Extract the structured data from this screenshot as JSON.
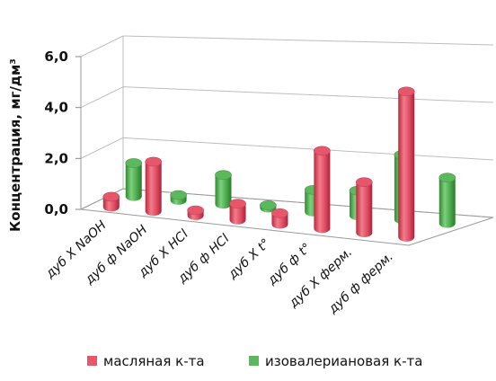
{
  "chart_data": {
    "type": "bar",
    "subtype": "3d-cylinder",
    "title": "",
    "ylabel": "Концентрация, мг/дм³",
    "xlabel": "",
    "ylim": [
      0,
      6
    ],
    "yticks": [
      "0,0",
      "2,0",
      "4,0",
      "6,0"
    ],
    "grid": true,
    "legend_position": "bottom",
    "categories": [
      "дуб Х NaOH",
      "дуб ф NaOH",
      "дуб Х HCl",
      "дуб ф HCl",
      "дуб Х t°",
      "дуб ф t°",
      "дуб Х ферм.",
      "дуб ф ферм."
    ],
    "series": [
      {
        "name": "масляная к-та",
        "color": "#e8566b",
        "values": [
          0.4,
          1.9,
          0.2,
          0.6,
          0.4,
          2.8,
          1.8,
          5.1
        ]
      },
      {
        "name": "изовалериановая к-та",
        "color": "#5cb85c",
        "values": [
          1.3,
          0.2,
          1.1,
          0.0,
          0.8,
          0.9,
          2.3,
          1.6
        ]
      }
    ]
  }
}
